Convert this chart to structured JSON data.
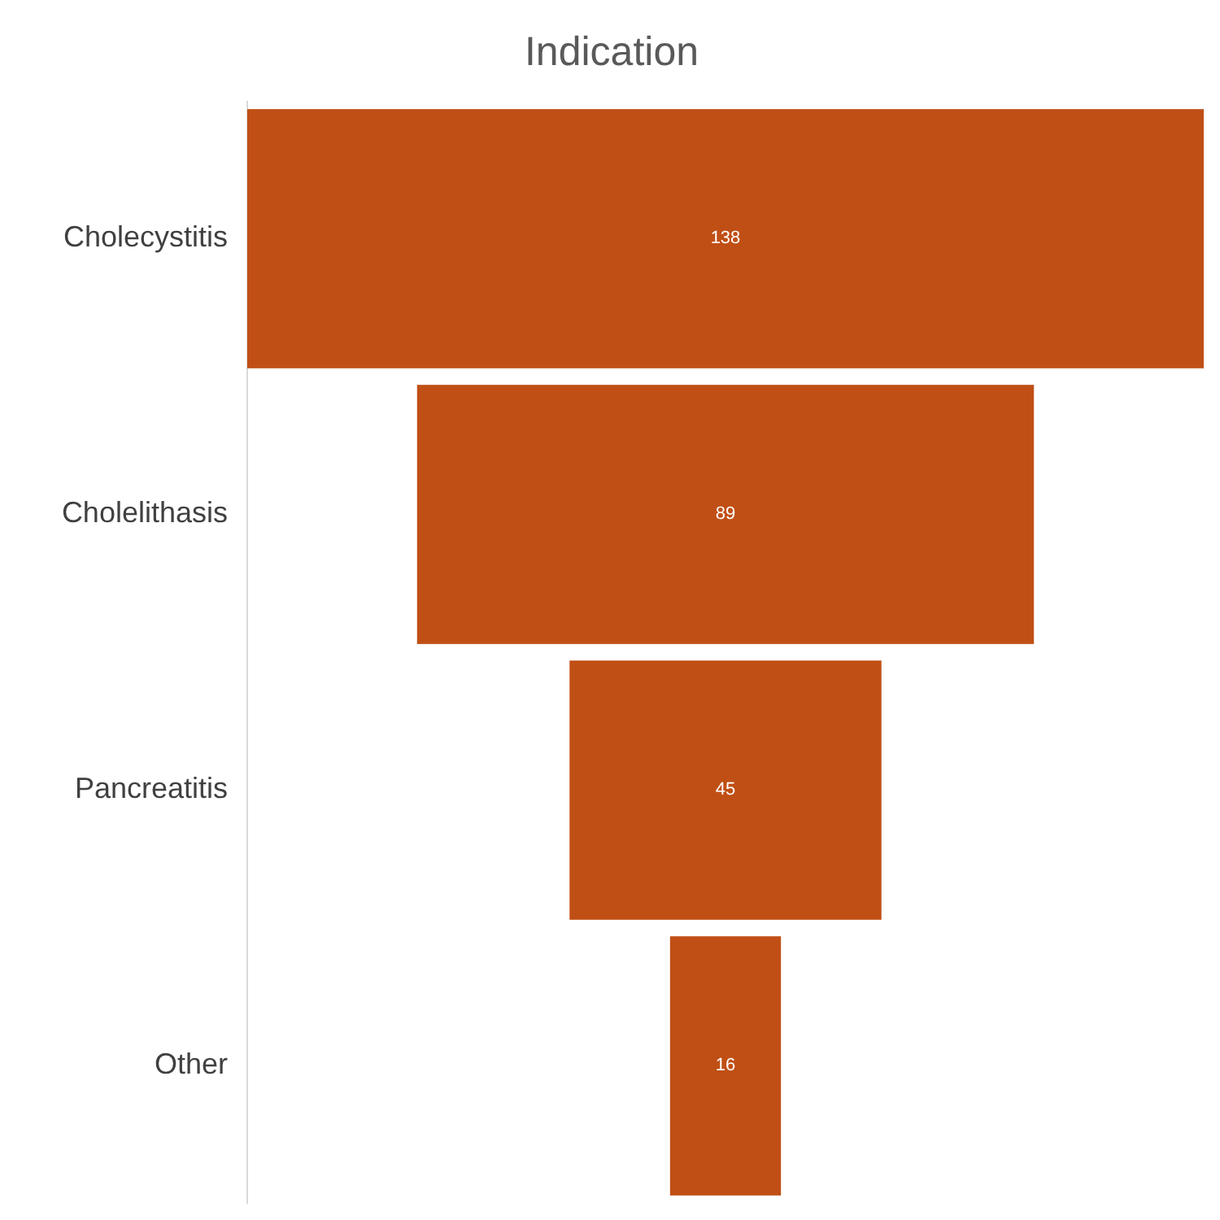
{
  "chart_data": {
    "type": "other",
    "title": "Indication",
    "categories": [
      "Cholecystitis",
      "Cholelithasis",
      "Pancreatitis",
      "Other"
    ],
    "values": [
      138,
      89,
      45,
      16
    ],
    "color": "#c04f15",
    "data_labels": true
  }
}
